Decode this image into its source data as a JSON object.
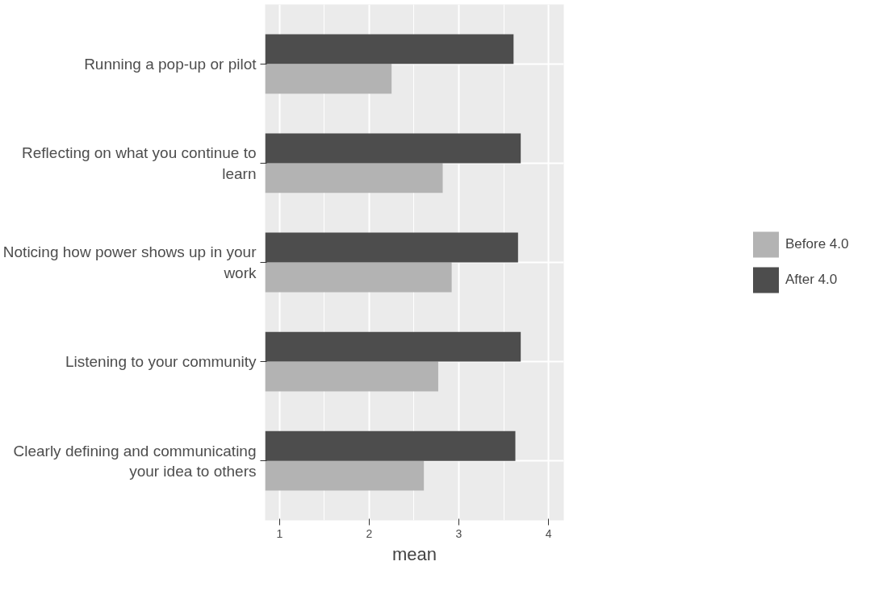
{
  "chart_data": {
    "type": "bar",
    "orientation": "horizontal",
    "xlabel": "mean",
    "categories": [
      "Running a pop-up or pilot",
      "Reflecting on what you continue to\nlearn",
      "Noticing how power shows up in your\nwork",
      "Listening to your community",
      "Clearly defining and communicating\nyour idea to others"
    ],
    "series": [
      {
        "name": "Before 4.0",
        "color": "#b3b3b3",
        "values": [
          2.25,
          2.82,
          2.92,
          2.77,
          2.61
        ]
      },
      {
        "name": "After 4.0",
        "color": "#4d4d4d",
        "values": [
          3.61,
          3.69,
          3.66,
          3.69,
          3.63
        ]
      }
    ],
    "xlim": [
      0.84,
      4.17
    ],
    "xticks": [
      1,
      2,
      3,
      4
    ],
    "grid": true,
    "legend": "right"
  }
}
